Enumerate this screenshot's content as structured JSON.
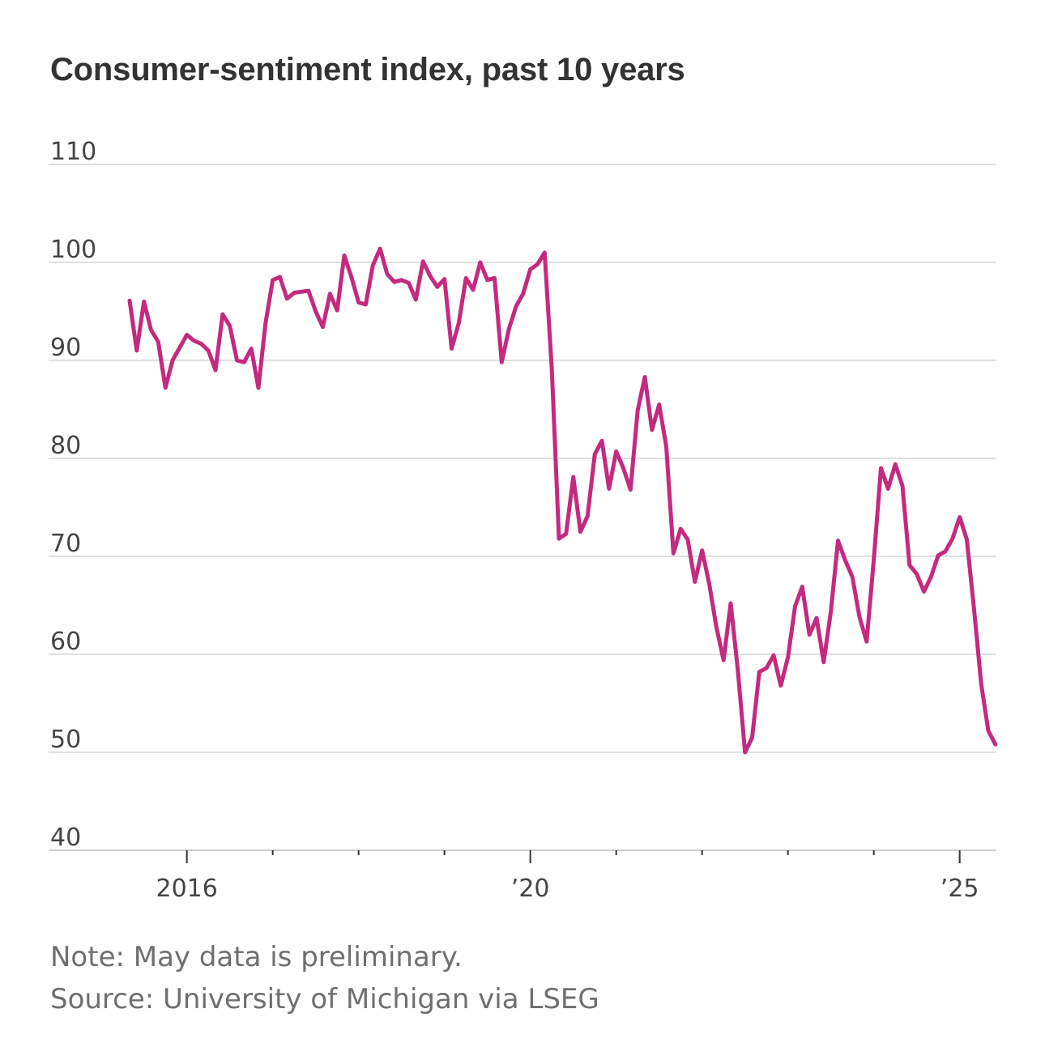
{
  "title": "Consumer-sentiment index, past 10 years",
  "note": "Note: May data is preliminary.",
  "source": "Source: University of Michigan via LSEG",
  "colors": {
    "line": "#c42a7f",
    "grid": "#e0e0e0",
    "axis": "#cfcfcf",
    "text": "#444444"
  },
  "chart_data": {
    "type": "line",
    "title": "Consumer-sentiment index, past 10 years",
    "xlabel": "",
    "ylabel": "",
    "ylim": [
      40,
      110
    ],
    "yticks": [
      40,
      50,
      60,
      70,
      80,
      90,
      100,
      110
    ],
    "xlim": [
      "2015-05",
      "2025-05"
    ],
    "x_tick_labels": [
      {
        "x": "2016-01",
        "label": "2016"
      },
      {
        "x": "2020-01",
        "label": "’20"
      },
      {
        "x": "2025-01",
        "label": "’25"
      }
    ],
    "x_minor_ticks": [
      "2017-01",
      "2018-01",
      "2019-01",
      "2021-01",
      "2022-01",
      "2023-01",
      "2024-01"
    ],
    "grid": true,
    "legend": "none",
    "series": [
      {
        "values": [
          [
            "2015-05",
            96.1
          ],
          [
            "2015-06",
            91.0
          ],
          [
            "2015-07",
            96.0
          ],
          [
            "2015-08",
            93.1
          ],
          [
            "2015-09",
            91.9
          ],
          [
            "2015-10",
            87.2
          ],
          [
            "2015-11",
            90.0
          ],
          [
            "2015-12",
            91.3
          ],
          [
            "2016-01",
            92.6
          ],
          [
            "2016-02",
            92.0
          ],
          [
            "2016-03",
            91.7
          ],
          [
            "2016-04",
            91.0
          ],
          [
            "2016-05",
            89.0
          ],
          [
            "2016-06",
            94.7
          ],
          [
            "2016-07",
            93.5
          ],
          [
            "2016-08",
            90.0
          ],
          [
            "2016-09",
            89.8
          ],
          [
            "2016-10",
            91.2
          ],
          [
            "2016-11",
            87.2
          ],
          [
            "2016-12",
            93.8
          ],
          [
            "2017-01",
            98.2
          ],
          [
            "2017-02",
            98.5
          ],
          [
            "2017-03",
            96.3
          ],
          [
            "2017-04",
            96.9
          ],
          [
            "2017-05",
            97.0
          ],
          [
            "2017-06",
            97.1
          ],
          [
            "2017-07",
            95.0
          ],
          [
            "2017-08",
            93.4
          ],
          [
            "2017-09",
            96.8
          ],
          [
            "2017-10",
            95.1
          ],
          [
            "2017-11",
            100.7
          ],
          [
            "2017-12",
            98.5
          ],
          [
            "2018-01",
            95.9
          ],
          [
            "2018-02",
            95.7
          ],
          [
            "2018-03",
            99.7
          ],
          [
            "2018-04",
            101.4
          ],
          [
            "2018-05",
            98.8
          ],
          [
            "2018-06",
            98.0
          ],
          [
            "2018-07",
            98.2
          ],
          [
            "2018-08",
            97.9
          ],
          [
            "2018-09",
            96.2
          ],
          [
            "2018-10",
            100.1
          ],
          [
            "2018-11",
            98.6
          ],
          [
            "2018-12",
            97.5
          ],
          [
            "2019-01",
            98.3
          ],
          [
            "2019-02",
            91.2
          ],
          [
            "2019-03",
            93.8
          ],
          [
            "2019-04",
            98.4
          ],
          [
            "2019-05",
            97.2
          ],
          [
            "2019-06",
            100.0
          ],
          [
            "2019-07",
            98.2
          ],
          [
            "2019-08",
            98.4
          ],
          [
            "2019-09",
            89.8
          ],
          [
            "2019-10",
            93.2
          ],
          [
            "2019-11",
            95.5
          ],
          [
            "2019-12",
            96.8
          ],
          [
            "2020-01",
            99.3
          ],
          [
            "2020-02",
            99.8
          ],
          [
            "2020-03",
            101.0
          ],
          [
            "2020-04",
            89.1
          ],
          [
            "2020-05",
            71.8
          ],
          [
            "2020-06",
            72.3
          ],
          [
            "2020-07",
            78.1
          ],
          [
            "2020-08",
            72.5
          ],
          [
            "2020-09",
            74.1
          ],
          [
            "2020-10",
            80.4
          ],
          [
            "2020-11",
            81.8
          ],
          [
            "2020-12",
            76.9
          ],
          [
            "2021-01",
            80.7
          ],
          [
            "2021-02",
            79.0
          ],
          [
            "2021-03",
            76.8
          ],
          [
            "2021-04",
            84.9
          ],
          [
            "2021-05",
            88.3
          ],
          [
            "2021-06",
            82.9
          ],
          [
            "2021-07",
            85.5
          ],
          [
            "2021-08",
            81.2
          ],
          [
            "2021-09",
            70.3
          ],
          [
            "2021-10",
            72.8
          ],
          [
            "2021-11",
            71.7
          ],
          [
            "2021-12",
            67.4
          ],
          [
            "2022-01",
            70.6
          ],
          [
            "2022-02",
            67.2
          ],
          [
            "2022-03",
            62.8
          ],
          [
            "2022-04",
            59.4
          ],
          [
            "2022-05",
            65.2
          ],
          [
            "2022-06",
            58.4
          ],
          [
            "2022-07",
            50.0
          ],
          [
            "2022-08",
            51.5
          ],
          [
            "2022-09",
            58.2
          ],
          [
            "2022-10",
            58.6
          ],
          [
            "2022-11",
            59.9
          ],
          [
            "2022-12",
            56.8
          ],
          [
            "2023-01",
            59.7
          ],
          [
            "2023-02",
            64.9
          ],
          [
            "2023-03",
            66.9
          ],
          [
            "2023-04",
            62.0
          ],
          [
            "2023-05",
            63.7
          ],
          [
            "2023-06",
            59.2
          ],
          [
            "2023-07",
            64.4
          ],
          [
            "2023-08",
            71.6
          ],
          [
            "2023-09",
            69.6
          ],
          [
            "2023-10",
            67.9
          ],
          [
            "2023-11",
            63.8
          ],
          [
            "2023-12",
            61.3
          ],
          [
            "2024-01",
            69.7
          ],
          [
            "2024-02",
            79.0
          ],
          [
            "2024-03",
            76.9
          ],
          [
            "2024-04",
            79.4
          ],
          [
            "2024-05",
            77.2
          ],
          [
            "2024-06",
            69.1
          ],
          [
            "2024-07",
            68.2
          ],
          [
            "2024-08",
            66.4
          ],
          [
            "2024-09",
            67.9
          ],
          [
            "2024-10",
            70.1
          ],
          [
            "2024-11",
            70.5
          ],
          [
            "2024-12",
            71.8
          ],
          [
            "2025-01",
            74.0
          ],
          [
            "2025-02",
            71.7
          ],
          [
            "2025-03",
            64.7
          ],
          [
            "2025-04",
            57.0
          ],
          [
            "2025-05",
            52.2
          ],
          [
            "2025-06",
            50.8
          ]
        ]
      }
    ]
  }
}
